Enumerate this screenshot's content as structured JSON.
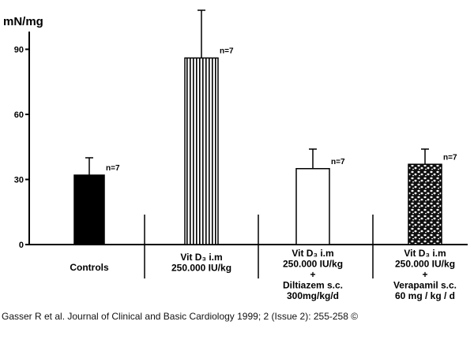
{
  "chart_data": {
    "type": "bar",
    "ylabel": "mN/mg",
    "yticks": [
      0,
      30,
      60,
      90
    ],
    "ylim": [
      0,
      100
    ],
    "grid": false,
    "categories": [
      [
        "Controls"
      ],
      [
        "Vit D₃ i.m",
        "250.000 IU/kg"
      ],
      [
        "Vit D₃ i.m",
        "250.000 IU/kg",
        "+",
        "Diltiazem s.c.",
        "300mg/kg/d"
      ],
      [
        "Vit D₃ i.m",
        "250.000 IU/kg",
        "+",
        "Verapamil s.c.",
        "60 mg / kg / d"
      ]
    ],
    "values": [
      32,
      86,
      35,
      37
    ],
    "errors": [
      8,
      22,
      9,
      7
    ],
    "n_labels": [
      "n=7",
      "n=7",
      "n=7",
      "n=7"
    ],
    "fills": [
      "solid-black",
      "vertical-stripes",
      "white",
      "stippled"
    ]
  },
  "caption": "Gasser R et al. Journal of Clinical and Basic Cardiology 1999; 2 (Issue 2): 255-258 ©"
}
